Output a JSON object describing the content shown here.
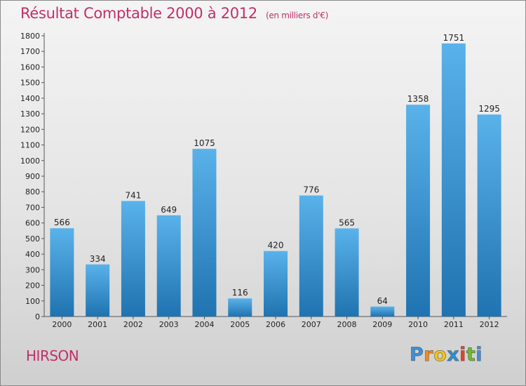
{
  "title": "Résultat Comptable 2000 à 2012",
  "subtitle": "(en milliers d'€)",
  "city": "HIRSON",
  "logo": {
    "letters": [
      "P",
      "r",
      "o",
      "x",
      "i",
      "t",
      "i"
    ]
  },
  "colors": {
    "title": "#c0306a",
    "bar_top": "#5ab2ea",
    "bar_bottom": "#1f73b0",
    "logo": [
      "#3f8fd4",
      "#f08a1c",
      "#f3c319",
      "#2e8fcf",
      "#e8412b",
      "#6dbb2b",
      "#3f8fd4"
    ]
  },
  "chart_data": {
    "type": "bar",
    "title": "Résultat Comptable 2000 à 2012",
    "subtitle": "(en milliers d'€)",
    "categories": [
      "2000",
      "2001",
      "2002",
      "2003",
      "2004",
      "2005",
      "2006",
      "2007",
      "2008",
      "2009",
      "2010",
      "2011",
      "2012"
    ],
    "values": [
      566,
      334,
      741,
      649,
      1075,
      116,
      420,
      776,
      565,
      64,
      1358,
      1751,
      1295
    ],
    "ylim": [
      0,
      1800
    ],
    "yticks": [
      0,
      100,
      200,
      300,
      400,
      500,
      600,
      700,
      800,
      900,
      1000,
      1100,
      1200,
      1300,
      1400,
      1500,
      1600,
      1700,
      1800
    ],
    "grid": false,
    "legend": "none"
  }
}
